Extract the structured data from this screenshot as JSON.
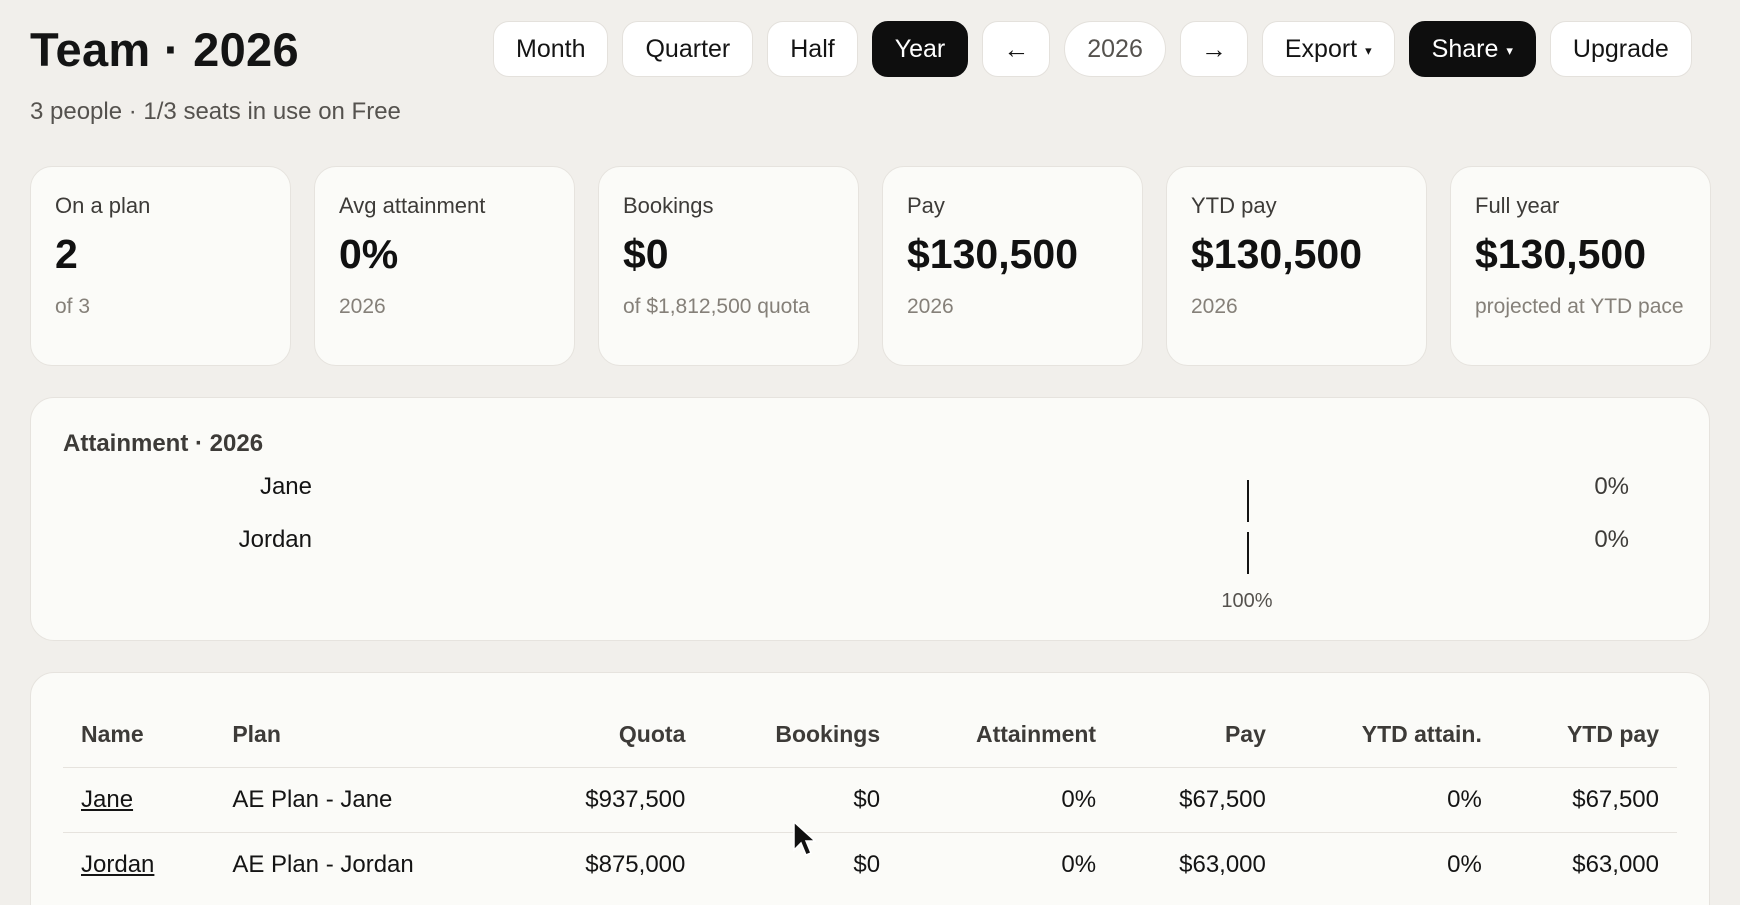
{
  "header": {
    "title": "Team · 2026",
    "subtitle": "3 people · 1/3 seats in use on Free"
  },
  "toolbar": {
    "month": "Month",
    "quarter": "Quarter",
    "half": "Half",
    "year": "Year",
    "prev_icon": "←",
    "year_value": "2026",
    "next_icon": "→",
    "export": "Export",
    "share": "Share",
    "caret": "▾",
    "upgrade": "Upgrade",
    "active_period": "Year"
  },
  "cards": [
    {
      "label": "On a plan",
      "value": "2",
      "sub": "of 3"
    },
    {
      "label": "Avg attainment",
      "value": "0%",
      "sub": "2026"
    },
    {
      "label": "Bookings",
      "value": "$0",
      "sub": "of $1,812,500 quota"
    },
    {
      "label": "Pay",
      "value": "$130,500",
      "sub": "2026"
    },
    {
      "label": "YTD pay",
      "value": "$130,500",
      "sub": "2026"
    },
    {
      "label": "Full year",
      "value": "$130,500",
      "sub": "projected at YTD pace"
    }
  ],
  "chart_data": {
    "type": "bar",
    "title": "Attainment · 2026",
    "categories": [
      "Jane",
      "Jordan"
    ],
    "values": [
      0,
      0
    ],
    "value_labels": [
      "0%",
      "0%"
    ],
    "target": 100,
    "target_label": "100%",
    "xlim": [
      0,
      135
    ]
  },
  "table": {
    "columns": [
      "Name",
      "Plan",
      "Quota",
      "Bookings",
      "Attainment",
      "Pay",
      "YTD attain.",
      "YTD pay"
    ],
    "rows": [
      [
        "Jane",
        "AE Plan - Jane",
        "$937,500",
        "$0",
        "0%",
        "$67,500",
        "0%",
        "$67,500"
      ],
      [
        "Jordan",
        "AE Plan - Jordan",
        "$875,000",
        "$0",
        "0%",
        "$63,000",
        "0%",
        "$63,000"
      ]
    ]
  },
  "colors": {
    "background": "#f1efeb",
    "card": "#fbfbf8",
    "active_button": "#0e0e0e",
    "text": "#141414",
    "muted": "#858079"
  }
}
